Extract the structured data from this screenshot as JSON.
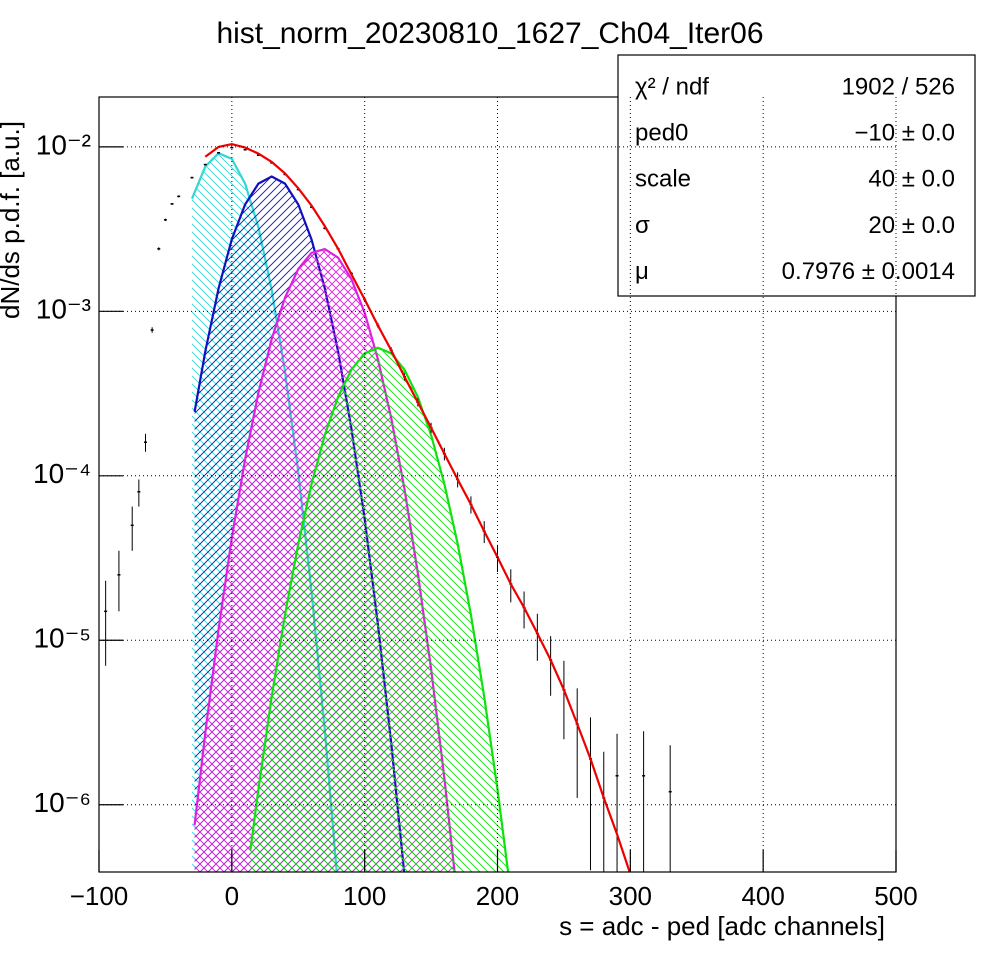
{
  "chart_data": {
    "type": "hist-fit",
    "title": "hist_norm_20230810_1627_Ch04_Iter06",
    "x_label": "s = adc - ped [adc channels]",
    "y_label": "dN/ds p.d.f. [a.u.]",
    "xlim": [
      -100,
      500
    ],
    "ylim": [
      3.9e-07,
      0.0201
    ],
    "log_y": true,
    "grid": true,
    "xticks": [
      {
        "value": -100,
        "label": "−100"
      },
      0,
      100,
      200,
      300,
      400,
      500
    ],
    "yticks": [
      {
        "value": 1e-06,
        "label": "10⁻⁶"
      },
      {
        "value": 1e-05,
        "label": "10⁻⁵"
      },
      {
        "value": 0.0001,
        "label": "10⁻⁴"
      },
      {
        "value": 0.001,
        "label": "10⁻³"
      },
      {
        "value": 0.01,
        "label": "10⁻²"
      }
    ],
    "series": [
      {
        "style": "curve",
        "color": "#33d6d6",
        "hatch": "back",
        "x": [
          -30,
          -20,
          -10,
          0,
          10,
          20,
          30,
          40,
          50,
          60,
          70,
          80
        ],
        "values": [
          0.00484,
          0.0076,
          0.00915,
          0.00845,
          0.00598,
          0.00325,
          0.00135,
          0.000431,
          0.000105,
          1.98e-05,
          2.84e-06,
          3.1e-07
        ]
      },
      {
        "style": "curve",
        "color": "#1010c0",
        "hatch": "fwd",
        "x": [
          -28,
          -20,
          -10,
          0,
          10,
          20,
          30,
          40,
          50,
          60,
          70,
          80,
          90,
          100,
          110,
          120,
          130
        ],
        "values": [
          0.000245,
          0.000571,
          0.00138,
          0.00274,
          0.00446,
          0.00598,
          0.0066,
          0.00598,
          0.00446,
          0.00274,
          0.00138,
          0.000571,
          0.000194,
          5.45e-05,
          1.25e-05,
          2.38e-06,
          3.7e-07
        ]
      },
      {
        "style": "curve",
        "color": "#e020e0",
        "hatch": "cross",
        "x": [
          -28,
          -20,
          -10,
          0,
          10,
          20,
          30,
          40,
          50,
          60,
          70,
          80,
          90,
          100,
          110,
          120,
          130,
          140,
          150,
          160,
          170
        ],
        "values": [
          7.5e-07,
          2.73e-06,
          1.17e-05,
          4.19e-05,
          0.000126,
          0.000319,
          0.000678,
          0.00121,
          0.00181,
          0.00227,
          0.00239,
          0.00212,
          0.00157,
          0.00098,
          0.000512,
          0.000225,
          8.3e-05,
          2.57e-05,
          6.7e-06,
          1.45e-06,
          2.6e-07
        ]
      },
      {
        "style": "curve",
        "color": "#10e010",
        "hatch": "back",
        "x": [
          14,
          20,
          30,
          40,
          50,
          60,
          70,
          80,
          90,
          100,
          110,
          120,
          130,
          140,
          150,
          160,
          170,
          180,
          190,
          200,
          210
        ],
        "values": [
          5.3e-07,
          1.24e-06,
          4.54e-06,
          1.43e-05,
          3.85e-05,
          8.9e-05,
          0.000177,
          0.000302,
          0.000442,
          0.000556,
          0.0006,
          0.000556,
          0.000442,
          0.000302,
          0.000177,
          8.9e-05,
          3.85e-05,
          1.43e-05,
          4.54e-06,
          1.24e-06,
          2.9e-07
        ]
      },
      {
        "style": "points",
        "color": "#000000",
        "x": [
          -95,
          -85,
          -75,
          -70,
          -65,
          -60,
          -55,
          -50,
          -45,
          -40,
          -30,
          -20,
          -10,
          0,
          10,
          20,
          30,
          40,
          50,
          60,
          70,
          80,
          90,
          100,
          110,
          120,
          130,
          140,
          150,
          160,
          170,
          180,
          190,
          200,
          210,
          220,
          230,
          240,
          250,
          260,
          270,
          280,
          290,
          310,
          330
        ],
        "values": [
          1.5e-05,
          2.5e-05,
          5e-05,
          8e-05,
          0.00016,
          0.00077,
          0.0024,
          0.0036,
          0.0045,
          0.005,
          0.0065,
          0.0078,
          0.0092,
          0.0099,
          0.0096,
          0.0089,
          0.008,
          0.0068,
          0.0055,
          0.0043,
          0.0032,
          0.0024,
          0.0017,
          0.00118,
          0.00082,
          0.00058,
          0.0004,
          0.00028,
          0.000196,
          0.000136,
          9.5e-05,
          6.7e-05,
          4.6e-05,
          3.2e-05,
          2.2e-05,
          1.58e-05,
          1.1e-05,
          7.6e-06,
          5e-06,
          3.1e-06,
          1.9e-06,
          1.1e-06,
          1.5e-06,
          1.5e-06,
          1.2e-06
        ],
        "errors": [
          8e-06,
          1e-05,
          1.5e-05,
          1.5e-05,
          2e-05,
          3e-05,
          5e-05,
          6e-05,
          6e-05,
          7e-05,
          8e-05,
          9e-05,
          0.0001,
          0.0001,
          0.0001,
          0.0001,
          9e-05,
          8e-05,
          7e-05,
          6e-05,
          5e-05,
          4e-05,
          3.5e-05,
          3e-05,
          3e-05,
          2.5e-05,
          2e-05,
          1.6e-05,
          1.4e-05,
          1.2e-05,
          1e-05,
          8e-06,
          7e-06,
          6e-06,
          5e-06,
          4e-06,
          3.5e-06,
          3e-06,
          2.5e-06,
          2e-06,
          1.5e-06,
          1e-06,
          1.2e-06,
          1.3e-06,
          1.1e-06
        ]
      },
      {
        "style": "curve",
        "color": "#ee0000",
        "x": [
          -20,
          -10,
          0,
          10,
          20,
          30,
          40,
          50,
          60,
          70,
          80,
          90,
          100,
          110,
          120,
          130,
          140,
          150,
          160,
          170,
          180,
          190,
          200,
          210,
          220,
          230,
          240,
          250,
          260,
          270,
          280,
          290,
          300
        ],
        "values": [
          0.0087,
          0.01,
          0.0104,
          0.0099,
          0.0091,
          0.0081,
          0.0069,
          0.0056,
          0.0044,
          0.0033,
          0.0024,
          0.00168,
          0.00118,
          0.00082,
          0.00058,
          0.0004,
          0.00028,
          0.000196,
          0.000136,
          9.5e-05,
          6.7e-05,
          4.6e-05,
          3.2e-05,
          2.2e-05,
          1.58e-05,
          1.1e-05,
          7.6e-06,
          5e-06,
          3.1e-06,
          1.9e-06,
          1.1e-06,
          6.6e-07,
          3.8e-07
        ]
      }
    ],
    "stats_box": [
      {
        "label": "χ² / ndf",
        "value": "1902 / 526"
      },
      {
        "label": "ped0",
        "value": "−10 ± 0.0"
      },
      {
        "label": "scale",
        "value": "40 ± 0.0"
      },
      {
        "label": "σ",
        "value": "20 ± 0.0"
      },
      {
        "label": "μ",
        "value": "0.7976 ± 0.0014"
      }
    ]
  }
}
